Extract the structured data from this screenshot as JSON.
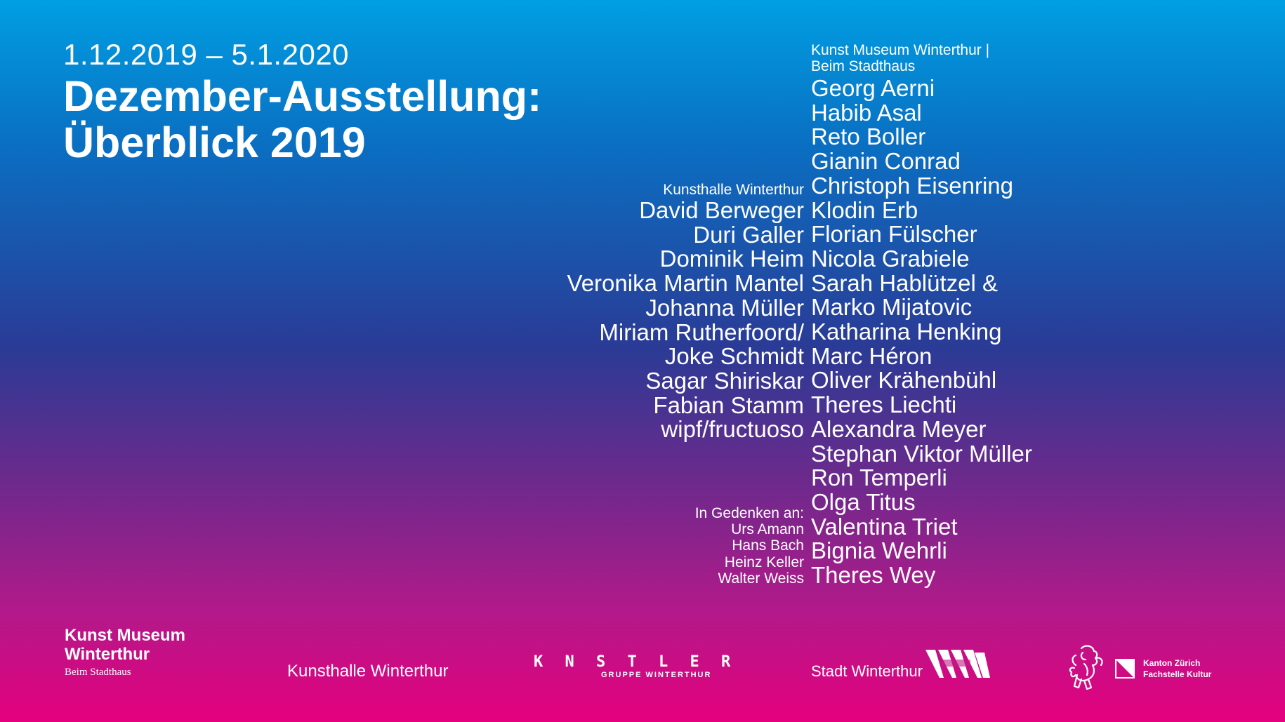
{
  "header": {
    "dates": "1.12.2019 – 5.1.2020",
    "title_line1": "Dezember-Ausstellung:",
    "title_line2": "Überblick 2019"
  },
  "right_column": {
    "venue_line1": "Kunst Museum Winterthur |",
    "venue_line2": "Beim Stadthaus",
    "artists": [
      "Georg Aerni",
      "Habib Asal",
      "Reto Boller",
      "Gianin Conrad",
      "Christoph Eisenring",
      "Klodin Erb",
      "Florian Fülscher",
      "Nicola Grabiele",
      "Sarah Hablützel &",
      "Marko Mijatovic",
      "Katharina Henking",
      "Marc Héron",
      "Oliver Krähenbühl",
      "Theres Liechti",
      "Alexandra Meyer",
      "Stephan Viktor Müller",
      "Ron Temperli",
      "Olga Titus",
      "Valentina Triet",
      "Bignia Wehrli",
      "Theres Wey"
    ]
  },
  "left_column": {
    "venue": "Kunsthalle Winterthur",
    "artists": [
      "David Berweger",
      "Duri Galler",
      "Dominik Heim",
      "Veronika Martin Mantel",
      "Johanna Müller",
      "Miriam Rutherfoord/",
      "Joke Schmidt",
      "Sagar Shiriskar",
      "Fabian Stamm",
      "wipf/fructuoso"
    ]
  },
  "memorial": {
    "heading": "In Gedenken an:",
    "names": [
      "Urs Amann",
      "Hans Bach",
      "Heinz Keller",
      "Walter Weiss"
    ]
  },
  "footer": {
    "kmw_line1": "Kunst Museum",
    "kmw_line2": "Winterthur",
    "kmw_line3": "Beim Stadthaus",
    "kunsthalle": "Kunsthalle Winterthur",
    "kuenstlergruppe_mark": "K N S T L E R",
    "kuenstlergruppe_sub": "GRUPPE WINTERTHUR",
    "stadt": "Stadt Winterthur",
    "kanton_line1": "Kanton Zürich",
    "kanton_line2": "Fachstelle Kultur"
  },
  "colors": {
    "gradient_top": "#009fe3",
    "gradient_mid": "#2a3b96",
    "gradient_bottom": "#e5007e",
    "text": "#ffffff"
  }
}
